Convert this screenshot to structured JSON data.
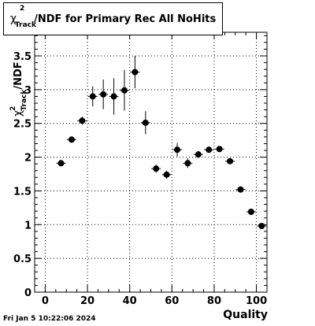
{
  "chart_data": {
    "type": "scatter",
    "title": "χ²Track/NDF for Primary Rec All NoHits",
    "xlabel": "Quality",
    "ylabel": "χ²Track/NDF",
    "xlim": [
      -5,
      105
    ],
    "ylim": [
      0,
      3.85
    ],
    "x_ticks": [
      0,
      20,
      40,
      60,
      80,
      100
    ],
    "y_ticks": [
      0,
      0.5,
      1,
      1.5,
      2,
      2.5,
      3,
      3.5
    ],
    "grid": true,
    "legend": "none",
    "series": [
      {
        "x": [
          7.5,
          12.5,
          17.5,
          22.5,
          27.5,
          32.5,
          37.5,
          42.5,
          47.5,
          52.5,
          57.5,
          62.5,
          67.5,
          72.5,
          77.5,
          82.5,
          87.5,
          92.5,
          97.5,
          102.5
        ],
        "y": [
          1.91,
          2.26,
          2.54,
          2.9,
          2.93,
          2.9,
          2.99,
          3.26,
          2.51,
          1.83,
          1.74,
          2.11,
          1.91,
          2.04,
          2.11,
          2.12,
          1.94,
          1.52,
          1.19,
          0.98
        ],
        "yerr": [
          0.03,
          0.04,
          0.06,
          0.15,
          0.22,
          0.27,
          0.3,
          0.24,
          0.17,
          0.06,
          0.06,
          0.1,
          0.07,
          0.05,
          0.04,
          0.04,
          0.03,
          0.03,
          0.03,
          0.03
        ]
      }
    ]
  },
  "footer": {
    "timestamp": "Fri Jan  5 10:22:06 2024"
  }
}
